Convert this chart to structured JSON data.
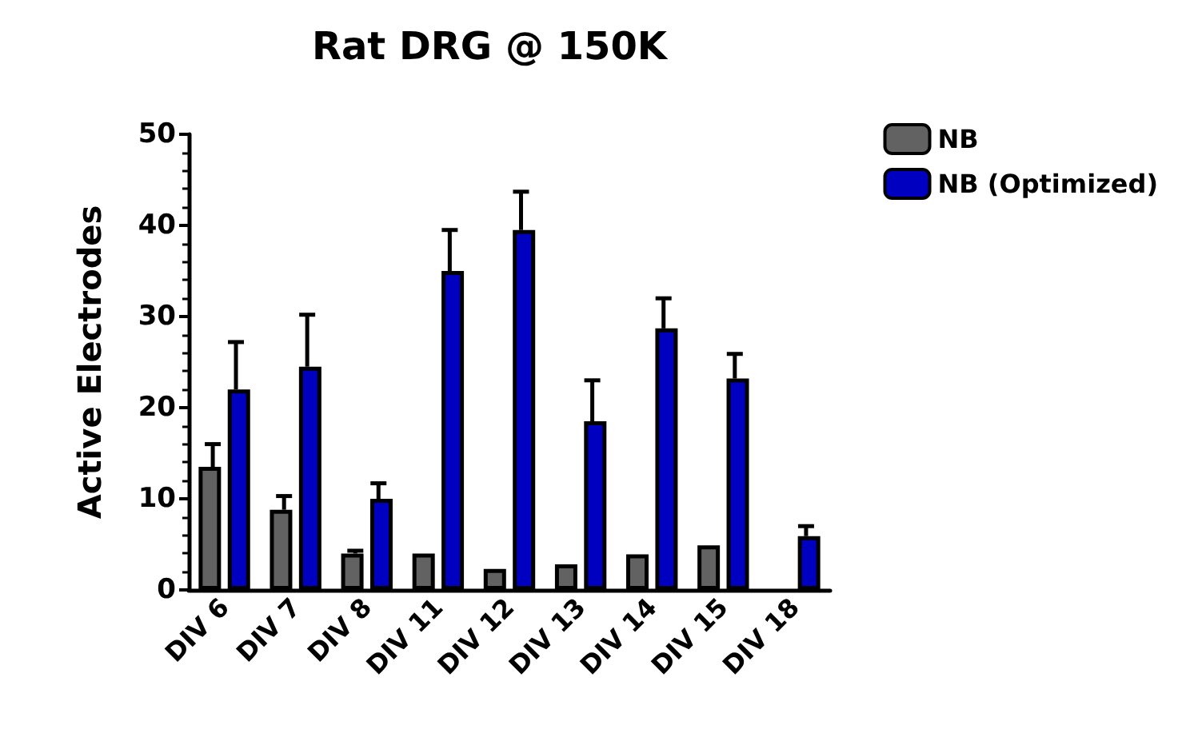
{
  "chart_data": {
    "type": "bar",
    "title": "Rat DRG @ 150K",
    "ylabel": "Active Electrodes",
    "categories": [
      "DIV 6",
      "DIV 7",
      "DIV 8",
      "DIV 11",
      "DIV 12",
      "DIV 13",
      "DIV 14",
      "DIV 15",
      "DIV 18"
    ],
    "series": [
      {
        "name": "NB",
        "color": "#626262",
        "values": [
          13.5,
          8.8,
          4.0,
          4.0,
          2.3,
          2.8,
          3.9,
          4.9,
          null
        ],
        "errors": [
          [
            13.5,
            16.0
          ],
          [
            8.8,
            10.3
          ],
          [
            4.0,
            4.3
          ],
          null,
          null,
          null,
          null,
          null,
          null
        ]
      },
      {
        "name": "NB (Optimized)",
        "color": "#0000c0",
        "values": [
          22.0,
          24.5,
          10.0,
          35.0,
          39.5,
          18.5,
          28.7,
          23.2,
          5.9
        ],
        "errors": [
          [
            22.0,
            27.2
          ],
          [
            24.5,
            30.2
          ],
          [
            10.0,
            11.7
          ],
          [
            35.0,
            39.5
          ],
          [
            39.5,
            43.7
          ],
          [
            18.5,
            23.0
          ],
          [
            28.7,
            32.0
          ],
          [
            23.2,
            25.9
          ],
          [
            5.9,
            7.0
          ]
        ]
      }
    ],
    "ylim": [
      0,
      50
    ],
    "yticks": [
      0,
      10,
      20,
      30,
      40,
      50
    ],
    "grid": false,
    "legend": "top right"
  }
}
